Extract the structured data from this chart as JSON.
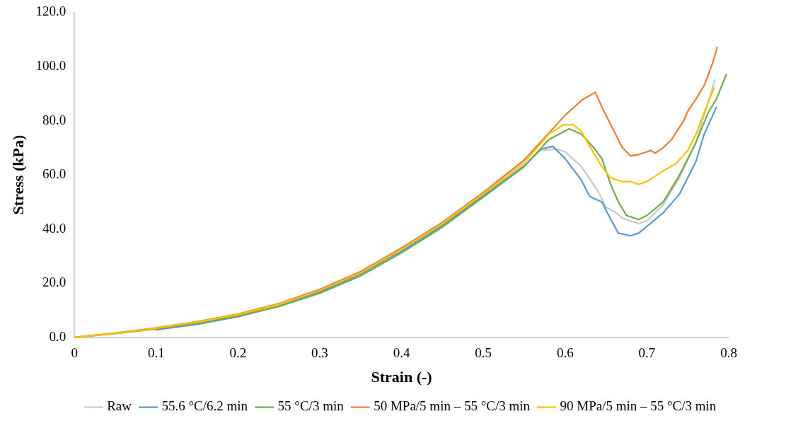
{
  "chart_data": {
    "type": "line",
    "xlabel": "Strain (-)",
    "ylabel": "Stress (kPa)",
    "xlim": [
      0,
      0.8
    ],
    "xticks": [
      0,
      0.1,
      0.2,
      0.3,
      0.4,
      0.5,
      0.6,
      0.7,
      0.8
    ],
    "ylim": [
      0,
      120
    ],
    "yticks": [
      {
        "value": 0,
        "label": "0.0"
      },
      {
        "value": 20,
        "label": "20.0"
      },
      {
        "value": 40,
        "label": "40.0"
      },
      {
        "value": 60,
        "label": "60.0"
      },
      {
        "value": 80,
        "label": "80.0"
      },
      {
        "value": 100,
        "label": "100.0"
      },
      {
        "value": 120,
        "label": "120.0"
      }
    ],
    "grid": false,
    "legend": "bottom",
    "marker": "none",
    "line_style": "solid",
    "series": [
      {
        "name": "Raw",
        "color": "#c9c9c9",
        "x": [
          0,
          0.05,
          0.1,
          0.15,
          0.2,
          0.25,
          0.3,
          0.35,
          0.4,
          0.45,
          0.5,
          0.55,
          0.57,
          0.59,
          0.6,
          0.62,
          0.64,
          0.65,
          0.66,
          0.67,
          0.69,
          0.7,
          0.72,
          0.74,
          0.76,
          0.78,
          0.783
        ],
        "values": [
          0,
          1.5,
          3.3,
          5.5,
          8.2,
          12,
          17,
          23.5,
          32,
          41.5,
          52.5,
          63.5,
          69,
          69.5,
          68.5,
          63,
          54,
          48,
          46.5,
          44,
          42,
          43,
          49,
          59,
          72,
          92,
          95
        ]
      },
      {
        "name": "55.6 °C/6.2 min",
        "color": "#5b9bd5",
        "x": [
          0.1,
          0.15,
          0.2,
          0.25,
          0.3,
          0.35,
          0.4,
          0.45,
          0.5,
          0.55,
          0.57,
          0.585,
          0.6,
          0.62,
          0.63,
          0.645,
          0.655,
          0.665,
          0.68,
          0.69,
          0.7,
          0.72,
          0.74,
          0.76,
          0.77,
          0.785
        ],
        "values": [
          2.8,
          4.8,
          7.6,
          11.5,
          16.8,
          23.3,
          31.8,
          41.3,
          52.3,
          63.3,
          69.5,
          70.5,
          66,
          58,
          52,
          50,
          44,
          38.5,
          37.5,
          38.5,
          41,
          46,
          53,
          65,
          75,
          85
        ]
      },
      {
        "name": "55 °C/3 min",
        "color": "#70ad47",
        "x": [
          0,
          0.05,
          0.1,
          0.15,
          0.2,
          0.25,
          0.3,
          0.35,
          0.4,
          0.45,
          0.5,
          0.55,
          0.58,
          0.605,
          0.62,
          0.635,
          0.645,
          0.655,
          0.665,
          0.675,
          0.69,
          0.7,
          0.72,
          0.74,
          0.76,
          0.775,
          0.785,
          0.797
        ],
        "values": [
          0,
          1.4,
          3.1,
          5.2,
          7.8,
          11.4,
          16.3,
          22.7,
          31.2,
          40.7,
          51.8,
          63,
          73,
          77,
          75,
          70,
          66,
          57,
          50,
          45,
          43.5,
          45,
          50,
          60,
          72,
          83,
          88,
          97
        ]
      },
      {
        "name": "50 MPa/5 min – 55 °C/3 min",
        "color": "#ed7d31",
        "x": [
          0,
          0.05,
          0.1,
          0.15,
          0.2,
          0.25,
          0.3,
          0.35,
          0.4,
          0.45,
          0.5,
          0.55,
          0.6,
          0.62,
          0.637,
          0.645,
          0.66,
          0.67,
          0.68,
          0.69,
          0.7,
          0.705,
          0.71,
          0.72,
          0.73,
          0.745,
          0.75,
          0.76,
          0.77,
          0.78,
          0.786
        ],
        "values": [
          0,
          1.6,
          3.5,
          5.8,
          8.6,
          12.5,
          17.7,
          24.3,
          33,
          42.5,
          53.5,
          65.5,
          82,
          87.5,
          90.5,
          85,
          76,
          70,
          67,
          67.5,
          68.5,
          69,
          68,
          70,
          73,
          80,
          83.5,
          88,
          93,
          101,
          107
        ]
      },
      {
        "name": "90 MPa/5 min – 55 °C/3 min",
        "color": "#ffc000",
        "x": [
          0,
          0.05,
          0.1,
          0.15,
          0.2,
          0.25,
          0.3,
          0.35,
          0.4,
          0.45,
          0.5,
          0.55,
          0.58,
          0.598,
          0.61,
          0.62,
          0.635,
          0.645,
          0.655,
          0.67,
          0.68,
          0.69,
          0.7,
          0.72,
          0.735,
          0.75,
          0.76,
          0.77,
          0.782
        ],
        "values": [
          0,
          1.5,
          3.4,
          5.6,
          8.4,
          12.2,
          17.3,
          23.8,
          32.5,
          42,
          53,
          64.5,
          75,
          78.5,
          78.5,
          76,
          68,
          63,
          59,
          57.5,
          57.5,
          56.5,
          57.5,
          61.5,
          64,
          69,
          75,
          83,
          92
        ]
      }
    ]
  }
}
